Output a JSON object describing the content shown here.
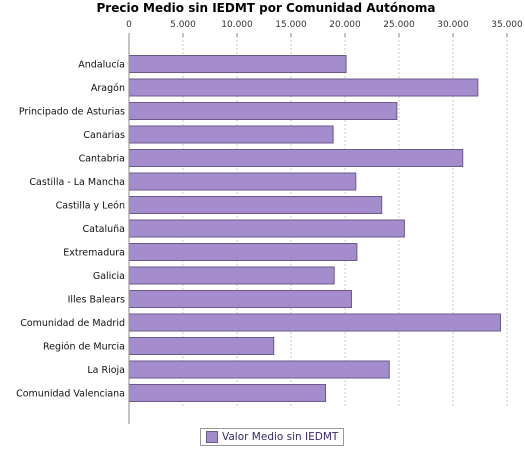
{
  "chart_data": {
    "type": "bar",
    "orientation": "horizontal",
    "title": "Precio Medio sin IEDMT por Comunidad Autónoma",
    "categories": [
      "Andalucía",
      "Aragón",
      "Principado de Asturias",
      "Canarias",
      "Cantabria",
      "Castilla - La Mancha",
      "Castilla y León",
      "Cataluña",
      "Extremadura",
      "Galicia",
      "Illes Balears",
      "Comunidad de Madrid",
      "Región de Murcia",
      "La Rioja",
      "Comunidad Valenciana"
    ],
    "series": [
      {
        "name": "Valor Medio sin IEDMT",
        "values": [
          20100,
          32300,
          24800,
          18900,
          30900,
          21000,
          23400,
          25500,
          21100,
          19000,
          20600,
          34400,
          13400,
          24100,
          18200
        ]
      }
    ],
    "xlim": [
      0,
      35000
    ],
    "ticks": [
      0,
      5000,
      10000,
      15000,
      20000,
      25000,
      30000,
      35000
    ],
    "tick_labels": [
      "0",
      "5.000",
      "10.000",
      "15.000",
      "20.000",
      "25.000",
      "30.000",
      "35.000"
    ],
    "tick_position": "top",
    "grid": true,
    "legend": "bottom",
    "bar_color": "#a58ccc"
  }
}
